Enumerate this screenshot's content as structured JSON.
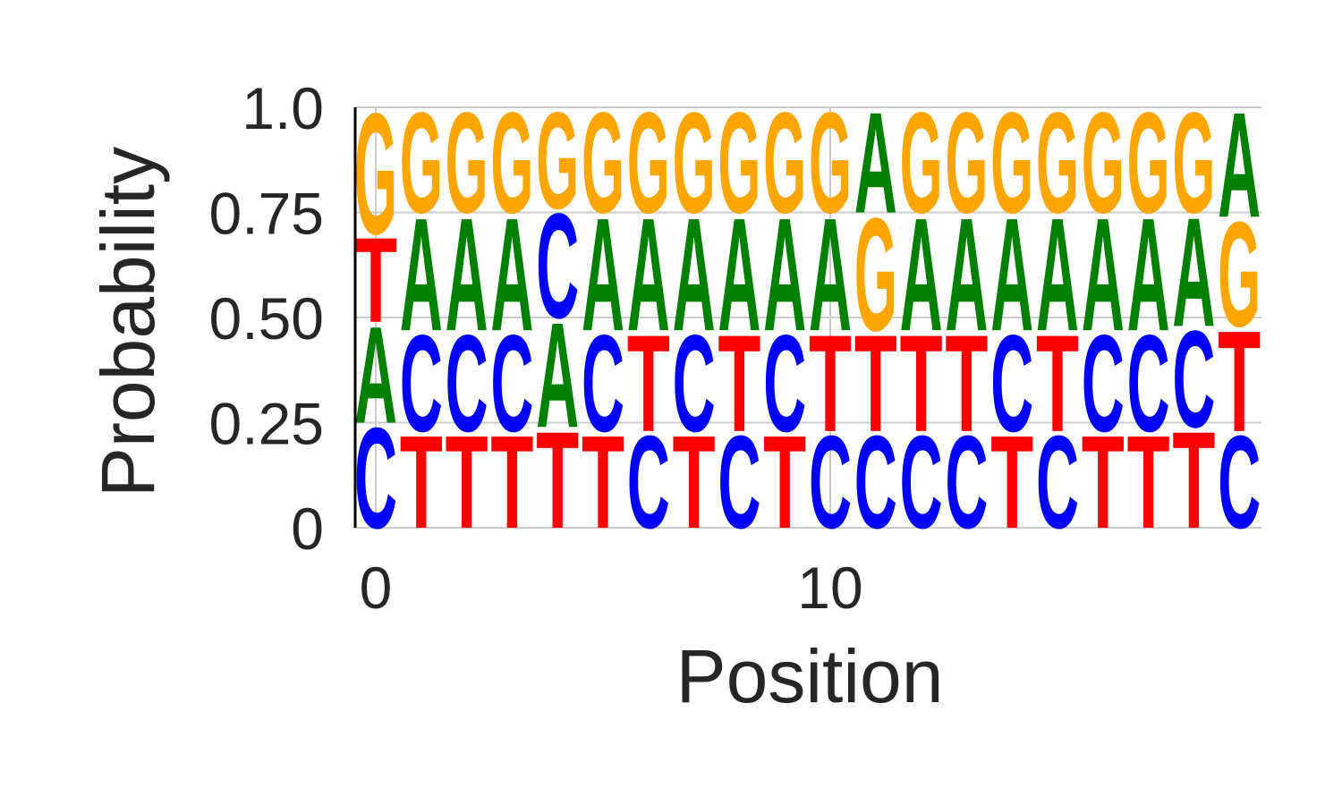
{
  "chart_data": {
    "type": "sequence-logo",
    "xlabel": "Position",
    "ylabel": "Probability",
    "ylim": [
      0,
      1
    ],
    "yticks": [
      {
        "value": 0,
        "label": "0"
      },
      {
        "value": 0.25,
        "label": "0.25"
      },
      {
        "value": 0.5,
        "label": "0.50"
      },
      {
        "value": 0.75,
        "label": "0.75"
      },
      {
        "value": 1.0,
        "label": "1.0"
      }
    ],
    "xticks": [
      {
        "value": 0,
        "label": "0"
      },
      {
        "value": 10,
        "label": "10"
      }
    ],
    "grid": true,
    "colors": {
      "A": "#008000",
      "C": "#0000ff",
      "G": "#ffa500",
      "T": "#ff0000"
    },
    "positions": [
      {
        "x": 0,
        "stack": [
          [
            "C",
            0.25
          ],
          [
            "A",
            0.24
          ],
          [
            "T",
            0.21
          ],
          [
            "G",
            0.3
          ]
        ]
      },
      {
        "x": 1,
        "stack": [
          [
            "T",
            0.23
          ],
          [
            "C",
            0.24
          ],
          [
            "A",
            0.28
          ],
          [
            "G",
            0.25
          ]
        ]
      },
      {
        "x": 2,
        "stack": [
          [
            "T",
            0.23
          ],
          [
            "C",
            0.24
          ],
          [
            "A",
            0.28
          ],
          [
            "G",
            0.25
          ]
        ]
      },
      {
        "x": 3,
        "stack": [
          [
            "T",
            0.23
          ],
          [
            "C",
            0.24
          ],
          [
            "A",
            0.28
          ],
          [
            "G",
            0.25
          ]
        ]
      },
      {
        "x": 4,
        "stack": [
          [
            "T",
            0.24
          ],
          [
            "A",
            0.26
          ],
          [
            "C",
            0.26
          ],
          [
            "G",
            0.24
          ]
        ]
      },
      {
        "x": 5,
        "stack": [
          [
            "T",
            0.23
          ],
          [
            "C",
            0.24
          ],
          [
            "A",
            0.28
          ],
          [
            "G",
            0.25
          ]
        ]
      },
      {
        "x": 6,
        "stack": [
          [
            "C",
            0.23
          ],
          [
            "T",
            0.24
          ],
          [
            "A",
            0.28
          ],
          [
            "G",
            0.25
          ]
        ]
      },
      {
        "x": 7,
        "stack": [
          [
            "T",
            0.23
          ],
          [
            "C",
            0.24
          ],
          [
            "A",
            0.28
          ],
          [
            "G",
            0.25
          ]
        ]
      },
      {
        "x": 8,
        "stack": [
          [
            "C",
            0.23
          ],
          [
            "T",
            0.24
          ],
          [
            "A",
            0.28
          ],
          [
            "G",
            0.25
          ]
        ]
      },
      {
        "x": 9,
        "stack": [
          [
            "T",
            0.23
          ],
          [
            "C",
            0.24
          ],
          [
            "A",
            0.28
          ],
          [
            "G",
            0.25
          ]
        ]
      },
      {
        "x": 10,
        "stack": [
          [
            "C",
            0.23
          ],
          [
            "T",
            0.24
          ],
          [
            "A",
            0.28
          ],
          [
            "G",
            0.25
          ]
        ]
      },
      {
        "x": 11,
        "stack": [
          [
            "C",
            0.23
          ],
          [
            "T",
            0.24
          ],
          [
            "G",
            0.28
          ],
          [
            "A",
            0.25
          ]
        ]
      },
      {
        "x": 12,
        "stack": [
          [
            "C",
            0.23
          ],
          [
            "T",
            0.24
          ],
          [
            "A",
            0.28
          ],
          [
            "G",
            0.25
          ]
        ]
      },
      {
        "x": 13,
        "stack": [
          [
            "C",
            0.23
          ],
          [
            "T",
            0.24
          ],
          [
            "A",
            0.28
          ],
          [
            "G",
            0.25
          ]
        ]
      },
      {
        "x": 14,
        "stack": [
          [
            "T",
            0.23
          ],
          [
            "C",
            0.24
          ],
          [
            "A",
            0.28
          ],
          [
            "G",
            0.25
          ]
        ]
      },
      {
        "x": 15,
        "stack": [
          [
            "C",
            0.23
          ],
          [
            "T",
            0.24
          ],
          [
            "A",
            0.28
          ],
          [
            "G",
            0.25
          ]
        ]
      },
      {
        "x": 16,
        "stack": [
          [
            "T",
            0.23
          ],
          [
            "C",
            0.24
          ],
          [
            "A",
            0.28
          ],
          [
            "G",
            0.25
          ]
        ]
      },
      {
        "x": 17,
        "stack": [
          [
            "T",
            0.23
          ],
          [
            "C",
            0.24
          ],
          [
            "A",
            0.28
          ],
          [
            "G",
            0.25
          ]
        ]
      },
      {
        "x": 18,
        "stack": [
          [
            "T",
            0.24
          ],
          [
            "C",
            0.24
          ],
          [
            "A",
            0.27
          ],
          [
            "G",
            0.25
          ]
        ]
      },
      {
        "x": 19,
        "stack": [
          [
            "C",
            0.23
          ],
          [
            "T",
            0.25
          ],
          [
            "G",
            0.26
          ],
          [
            "A",
            0.26
          ]
        ]
      }
    ]
  }
}
